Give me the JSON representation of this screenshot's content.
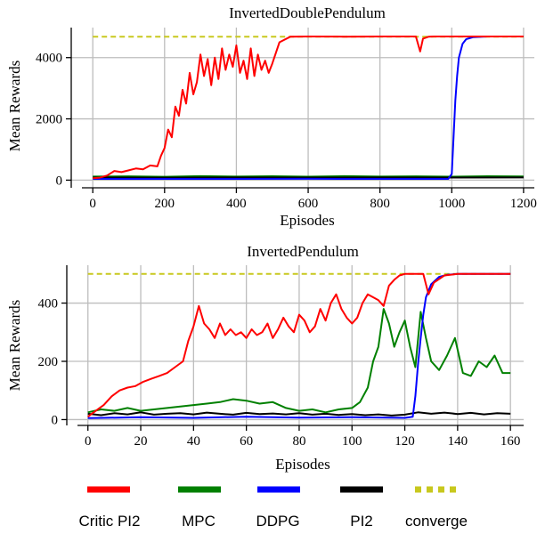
{
  "chart_data": [
    {
      "type": "line",
      "title": "InvertedDoublePendulum",
      "xlabel": "Episodes",
      "ylabel": "Mean Rewards",
      "xlim": [
        -60,
        1230
      ],
      "ylim": [
        -250,
        4980
      ],
      "xticks": [
        0,
        200,
        400,
        600,
        800,
        1000,
        1200
      ],
      "xtick_labels": [
        "0",
        "200",
        "400",
        "600",
        "800",
        "1000",
        "1200"
      ],
      "yticks": [
        0,
        2000,
        4000
      ],
      "ytick_labels": [
        "0",
        "2000",
        "4000"
      ],
      "grid": true,
      "series": [
        {
          "name": "converge",
          "color": "#c8c81e",
          "dashed": true,
          "x": [
            0,
            1200
          ],
          "y": [
            4680,
            4680
          ]
        },
        {
          "name": "MPC",
          "color": "#008000",
          "x": [
            0,
            100,
            200,
            300,
            400,
            500,
            600,
            700,
            800,
            900,
            1000,
            1100,
            1200
          ],
          "y": [
            115,
            125,
            110,
            130,
            115,
            128,
            112,
            130,
            115,
            125,
            112,
            128,
            120
          ]
        },
        {
          "name": "PI2",
          "color": "#000000",
          "x": [
            0,
            200,
            400,
            600,
            800,
            1000,
            1200
          ],
          "y": [
            85,
            82,
            88,
            84,
            86,
            85,
            87
          ]
        },
        {
          "name": "DDPG",
          "color": "#0000ff",
          "x": [
            0,
            200,
            400,
            600,
            800,
            990,
            1000,
            1005,
            1010,
            1015,
            1020,
            1030,
            1040,
            1060,
            1100,
            1200
          ],
          "y": [
            40,
            42,
            40,
            43,
            42,
            42,
            200,
            1400,
            2600,
            3400,
            4000,
            4450,
            4600,
            4670,
            4690,
            4690
          ]
        },
        {
          "name": "Critic PI2",
          "color": "#ff0000",
          "x": [
            0,
            20,
            40,
            60,
            80,
            100,
            120,
            140,
            160,
            180,
            190,
            200,
            210,
            220,
            230,
            240,
            250,
            260,
            270,
            280,
            290,
            300,
            310,
            320,
            330,
            340,
            350,
            360,
            370,
            380,
            390,
            400,
            410,
            420,
            430,
            440,
            450,
            460,
            470,
            480,
            490,
            500,
            520,
            550,
            600,
            700,
            800,
            900,
            912,
            920,
            935,
            950,
            1000,
            1100,
            1200
          ],
          "y": [
            60,
            80,
            150,
            300,
            260,
            320,
            380,
            350,
            480,
            450,
            800,
            1050,
            1650,
            1400,
            2400,
            2100,
            2950,
            2500,
            3500,
            2800,
            3200,
            4100,
            3400,
            3950,
            3100,
            4000,
            3300,
            4300,
            3600,
            4100,
            3700,
            4400,
            3500,
            3900,
            3300,
            4300,
            3400,
            4100,
            3600,
            3900,
            3500,
            3800,
            4500,
            4680,
            4690,
            4685,
            4690,
            4688,
            4200,
            4620,
            4680,
            4690,
            4690,
            4688,
            4690
          ]
        }
      ]
    },
    {
      "type": "line",
      "title": "InvertedPendulum",
      "xlabel": "Episodes",
      "ylabel": "Mean Rewards",
      "xlim": [
        -8,
        165
      ],
      "ylim": [
        -20,
        530
      ],
      "xticks": [
        0,
        20,
        40,
        60,
        80,
        100,
        120,
        140,
        160
      ],
      "xtick_labels": [
        "0",
        "20",
        "40",
        "60",
        "80",
        "100",
        "120",
        "140",
        "160"
      ],
      "yticks": [
        0,
        200,
        400
      ],
      "ytick_labels": [
        "0",
        "200",
        "400"
      ],
      "grid": true,
      "series": [
        {
          "name": "converge",
          "color": "#c8c81e",
          "dashed": true,
          "x": [
            0,
            160
          ],
          "y": [
            500,
            500
          ]
        },
        {
          "name": "PI2",
          "color": "#000000",
          "x": [
            0,
            5,
            10,
            15,
            20,
            25,
            30,
            35,
            40,
            45,
            50,
            55,
            60,
            65,
            70,
            75,
            80,
            85,
            90,
            95,
            100,
            105,
            110,
            115,
            120,
            125,
            130,
            135,
            140,
            145,
            150,
            155,
            160
          ],
          "y": [
            20,
            15,
            22,
            18,
            25,
            17,
            20,
            22,
            18,
            24,
            20,
            17,
            23,
            19,
            21,
            18,
            22,
            17,
            20,
            16,
            19,
            15,
            18,
            14,
            17,
            25,
            20,
            24,
            19,
            23,
            18,
            22,
            20
          ]
        },
        {
          "name": "MPC",
          "color": "#008000",
          "x": [
            0,
            5,
            10,
            15,
            20,
            25,
            30,
            35,
            40,
            45,
            50,
            55,
            60,
            65,
            70,
            75,
            80,
            85,
            90,
            95,
            100,
            103,
            106,
            108,
            110,
            112,
            114,
            116,
            118,
            120,
            122,
            124,
            126,
            128,
            130,
            133,
            136,
            139,
            142,
            145,
            148,
            151,
            154,
            157,
            160
          ],
          "y": [
            25,
            35,
            30,
            40,
            30,
            35,
            40,
            45,
            50,
            55,
            60,
            70,
            65,
            55,
            60,
            40,
            30,
            35,
            25,
            35,
            40,
            60,
            110,
            200,
            250,
            380,
            330,
            250,
            300,
            340,
            250,
            180,
            370,
            280,
            200,
            170,
            220,
            280,
            160,
            150,
            200,
            180,
            220,
            160,
            160
          ]
        },
        {
          "name": "DDPG",
          "color": "#0000ff",
          "x": [
            0,
            20,
            40,
            60,
            80,
            100,
            120,
            123,
            124,
            125,
            126,
            127,
            128,
            130,
            133,
            136,
            140,
            150,
            160
          ],
          "y": [
            5,
            8,
            6,
            10,
            7,
            8,
            6,
            10,
            80,
            190,
            280,
            360,
            420,
            465,
            490,
            497,
            500,
            500,
            500
          ]
        },
        {
          "name": "Critic PI2",
          "color": "#ff0000",
          "x": [
            0,
            3,
            6,
            9,
            12,
            15,
            18,
            21,
            24,
            27,
            30,
            33,
            36,
            38,
            40,
            42,
            44,
            46,
            48,
            50,
            52,
            54,
            56,
            58,
            60,
            62,
            64,
            66,
            68,
            70,
            72,
            74,
            76,
            78,
            80,
            82,
            84,
            86,
            88,
            90,
            92,
            94,
            96,
            98,
            100,
            102,
            104,
            106,
            108,
            110,
            112,
            114,
            116,
            118,
            120,
            122,
            125,
            127,
            129,
            131,
            135,
            140,
            150,
            160
          ],
          "y": [
            10,
            30,
            50,
            80,
            100,
            110,
            115,
            130,
            140,
            150,
            160,
            180,
            200,
            270,
            320,
            390,
            330,
            310,
            280,
            330,
            290,
            310,
            290,
            300,
            280,
            310,
            290,
            300,
            330,
            280,
            310,
            350,
            320,
            300,
            360,
            340,
            300,
            320,
            380,
            340,
            400,
            430,
            380,
            350,
            330,
            350,
            400,
            430,
            420,
            410,
            390,
            460,
            480,
            495,
            500,
            500,
            500,
            500,
            430,
            470,
            495,
            500,
            500,
            500
          ]
        }
      ]
    }
  ],
  "legend": [
    {
      "name": "Critic PI2",
      "color": "#ff0000",
      "dashed": false
    },
    {
      "name": "MPC",
      "color": "#008000",
      "dashed": false
    },
    {
      "name": "DDPG",
      "color": "#0000ff",
      "dashed": false
    },
    {
      "name": "PI2",
      "color": "#000000",
      "dashed": false
    },
    {
      "name": "converge",
      "color": "#c8c81e",
      "dashed": true
    }
  ]
}
